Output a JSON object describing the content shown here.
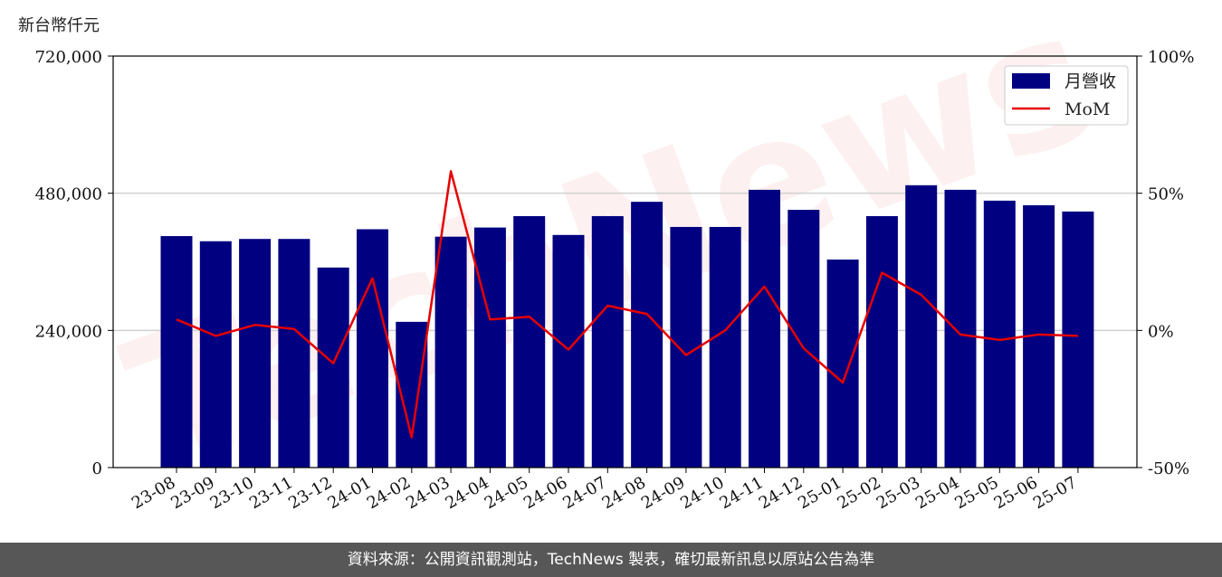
{
  "unit_label": "新台幣仟元",
  "footer_text": "資料來源：公開資訊觀測站，TechNews 製表，確切最新訊息以原站公告為準",
  "watermark_text": "TechNews",
  "colors": {
    "bar": "#000080",
    "line": "#e60000",
    "grid": "#d0d0d0",
    "footer": "#575757"
  },
  "chart_data": {
    "type": "bar",
    "categories": [
      "23-08",
      "23-09",
      "23-10",
      "23-11",
      "23-12",
      "24-01",
      "24-02",
      "24-03",
      "24-04",
      "24-05",
      "24-06",
      "24-07",
      "24-08",
      "24-09",
      "24-10",
      "24-11",
      "24-12",
      "25-01",
      "25-02",
      "25-03",
      "25-04",
      "25-05",
      "25-06",
      "25-07"
    ],
    "series": [
      {
        "name": "月營收",
        "type": "bar",
        "axis": "left",
        "values": [
          405000,
          396000,
          400000,
          400000,
          350000,
          417000,
          255000,
          404000,
          420000,
          440000,
          407000,
          440000,
          465000,
          421000,
          421000,
          486000,
          451000,
          364000,
          440000,
          494000,
          486000,
          467000,
          459000,
          448000
        ]
      },
      {
        "name": "MoM",
        "type": "line",
        "axis": "right",
        "values": [
          4.0,
          -2.0,
          2.0,
          0.5,
          -12.0,
          19.0,
          -39.0,
          58.0,
          4.0,
          5.0,
          -7.0,
          9.0,
          6.0,
          -9.0,
          0.0,
          16.0,
          -6.5,
          -19.0,
          21.0,
          13.0,
          -1.5,
          -3.5,
          -1.5,
          -2.0
        ]
      }
    ],
    "y_left": {
      "range": [
        0,
        720000
      ],
      "ticks": [
        0,
        240000,
        480000,
        720000
      ],
      "tick_labels": [
        "0",
        "240,000",
        "480,000",
        "720,000"
      ]
    },
    "y_right": {
      "range": [
        -50,
        100
      ],
      "ticks": [
        -50,
        0,
        50,
        100
      ],
      "tick_labels": [
        "-50%",
        "0%",
        "50%",
        "100%"
      ]
    },
    "grid": "horizontal",
    "legend": "top-right"
  }
}
